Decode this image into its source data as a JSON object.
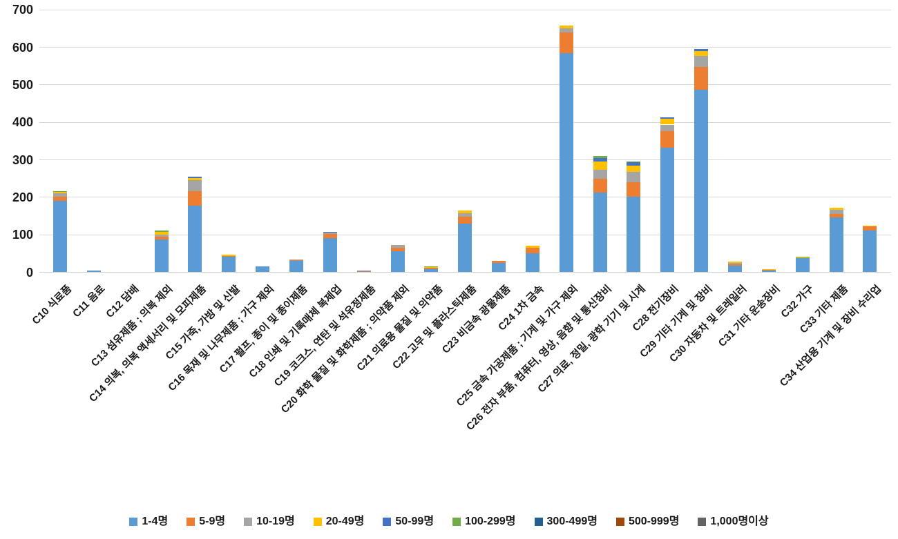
{
  "chart_data": {
    "type": "bar",
    "stacked": true,
    "title": "",
    "xlabel": "",
    "ylabel": "",
    "ylim": [
      0,
      700
    ],
    "y_ticks": [
      "0",
      "100",
      "200",
      "300",
      "400",
      "500",
      "600",
      "700"
    ],
    "grid": true,
    "legend_position": "bottom",
    "categories": [
      "C10 식료품",
      "C11 음료",
      "C12 담배",
      "C13 섬유제품 ; 의복 제외",
      "C14 의복, 의복 액세서리 및 모피제품",
      "C15 가죽, 가방 및 신발",
      "C16 목재 및 나무제품 ; 가구 제외",
      "C17 펄프, 종이 및 종이제품",
      "C18 인쇄 및 기록매체 복제업",
      "C19 코크스, 연탄 및 석유정제품",
      "C20 화학 물질 및 화학제품 ; 의약품 제외",
      "C21 의료용 물질 및 의약품",
      "C22 고무 및 플라스틱제품",
      "C23 비금속 광물제품",
      "C24 1차 금속",
      "C25 금속 가공제품 ; 기계 및 가구 제외",
      "C26 전자 부품, 컴퓨터, 영상, 음향 및 통신장비",
      "C27 의료, 정밀, 광학 기기 및 시계",
      "C28 전기장비",
      "C29 기타 기계 및 장비",
      "C30 자동차 및 트레일러",
      "C31 기타 운송장비",
      "C32 가구",
      "C33 기타 제품",
      "C34 산업용 기계 및 장비 수리업"
    ],
    "series": [
      {
        "name": "1-4명",
        "color": "#5B9BD5",
        "values": [
          190,
          4,
          0,
          88,
          177,
          42,
          16,
          30,
          91,
          3,
          57,
          9,
          130,
          25,
          51,
          585,
          213,
          202,
          333,
          487,
          18,
          5,
          37,
          146,
          112
        ]
      },
      {
        "name": "5-9명",
        "color": "#ED7D31",
        "values": [
          11,
          0,
          0,
          6,
          39,
          2,
          0,
          2,
          12,
          1,
          8,
          3,
          18,
          5,
          15,
          55,
          36,
          38,
          44,
          61,
          3,
          2,
          2,
          10,
          11
        ]
      },
      {
        "name": "10-19명",
        "color": "#A5A5A5",
        "values": [
          9,
          0,
          0,
          7,
          29,
          0,
          0,
          2,
          2,
          0,
          8,
          0,
          10,
          0,
          0,
          10,
          24,
          28,
          17,
          29,
          3,
          0,
          0,
          11,
          0
        ]
      },
      {
        "name": "20-49명",
        "color": "#FFC000",
        "values": [
          4,
          0,
          0,
          6,
          6,
          3,
          0,
          0,
          0,
          0,
          0,
          2,
          6,
          0,
          4,
          8,
          23,
          16,
          15,
          13,
          4,
          1,
          1,
          5,
          2
        ]
      },
      {
        "name": "50-99명",
        "color": "#4472C4",
        "values": [
          0,
          0,
          0,
          0,
          4,
          0,
          0,
          0,
          2,
          0,
          0,
          0,
          0,
          0,
          0,
          0,
          9,
          9,
          5,
          5,
          0,
          0,
          0,
          0,
          0
        ]
      },
      {
        "name": "100-299명",
        "color": "#70AD47",
        "values": [
          3,
          0,
          0,
          4,
          0,
          0,
          0,
          0,
          0,
          0,
          0,
          2,
          0,
          0,
          0,
          0,
          5,
          3,
          0,
          0,
          0,
          0,
          2,
          0,
          0
        ]
      },
      {
        "name": "300-499명",
        "color": "#255E91",
        "values": [
          0,
          0,
          0,
          0,
          0,
          0,
          0,
          0,
          0,
          0,
          0,
          0,
          0,
          0,
          0,
          0,
          0,
          0,
          0,
          0,
          0,
          0,
          0,
          0,
          0
        ]
      },
      {
        "name": "500-999명",
        "color": "#9E480E",
        "values": [
          0,
          0,
          0,
          0,
          0,
          0,
          0,
          0,
          0,
          0,
          0,
          0,
          0,
          0,
          0,
          0,
          0,
          0,
          0,
          0,
          0,
          0,
          0,
          0,
          0
        ]
      },
      {
        "name": "1,000명이상",
        "color": "#636363",
        "values": [
          0,
          0,
          0,
          0,
          0,
          0,
          0,
          0,
          0,
          0,
          0,
          0,
          0,
          0,
          0,
          0,
          0,
          0,
          0,
          0,
          0,
          0,
          0,
          0,
          0
        ]
      }
    ]
  }
}
